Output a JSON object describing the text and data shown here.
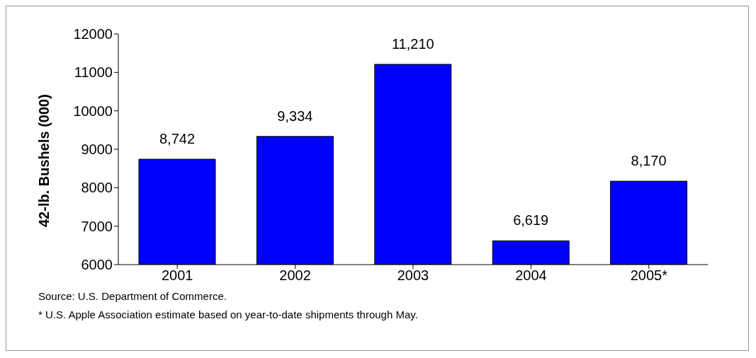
{
  "chart_data": {
    "type": "bar",
    "ylabel": "42-lb. Bushels (000)",
    "categories": [
      "2001",
      "2002",
      "2003",
      "2004",
      "2005*"
    ],
    "values": [
      8742,
      9334,
      11210,
      6619,
      8170
    ],
    "value_labels": [
      "8,742",
      "9,334",
      "11,210",
      "6,619",
      "8,170"
    ],
    "color": "#0000ff",
    "ylim": [
      6000,
      12000
    ],
    "yticks": [
      6000,
      7000,
      8000,
      9000,
      10000,
      11000,
      12000
    ],
    "grid": false,
    "annotations": [
      "Source: U.S. Department of Commerce.",
      "* U.S. Apple Association estimate based on year-to-date shipments through May."
    ]
  }
}
